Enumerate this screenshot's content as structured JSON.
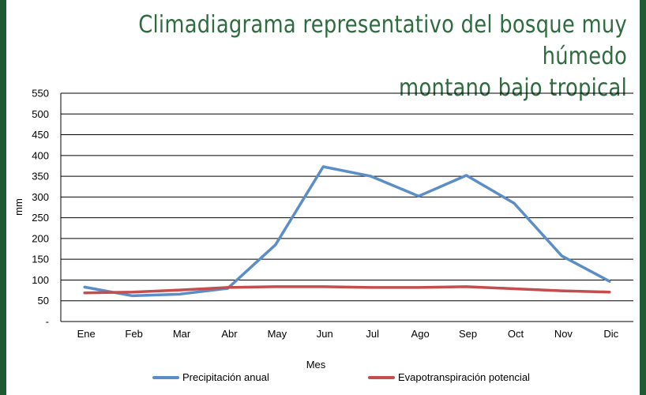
{
  "chart_data": {
    "type": "line",
    "title": [
      "Climadiagrama representativo del bosque muy húmedo",
      "montano bajo tropical"
    ],
    "xlabel": "Mes",
    "ylabel": "mm",
    "categories": [
      "Ene",
      "Feb",
      "Mar",
      "Abr",
      "May",
      "Jun",
      "Jul",
      "Ago",
      "Sep",
      "Oct",
      "Nov",
      "Dic"
    ],
    "ylim": [
      0,
      550
    ],
    "yticks": [
      0,
      50,
      100,
      150,
      200,
      250,
      300,
      350,
      400,
      450,
      500,
      550
    ],
    "ytick_labels": [
      "-",
      "50",
      "100",
      "150",
      "200",
      "250",
      "300",
      "350",
      "400",
      "450",
      "500",
      "550"
    ],
    "grid": true,
    "legend_position": "bottom",
    "series": [
      {
        "name": "Precipitación anual",
        "color": "#5b8ec6",
        "values": [
          83,
          62,
          66,
          80,
          185,
          373,
          350,
          302,
          352,
          285,
          158,
          97
        ]
      },
      {
        "name": "Evapotranspiración potencial",
        "color": "#c44e4e",
        "values": [
          69,
          71,
          76,
          82,
          84,
          84,
          82,
          82,
          84,
          79,
          74,
          71
        ]
      }
    ]
  }
}
